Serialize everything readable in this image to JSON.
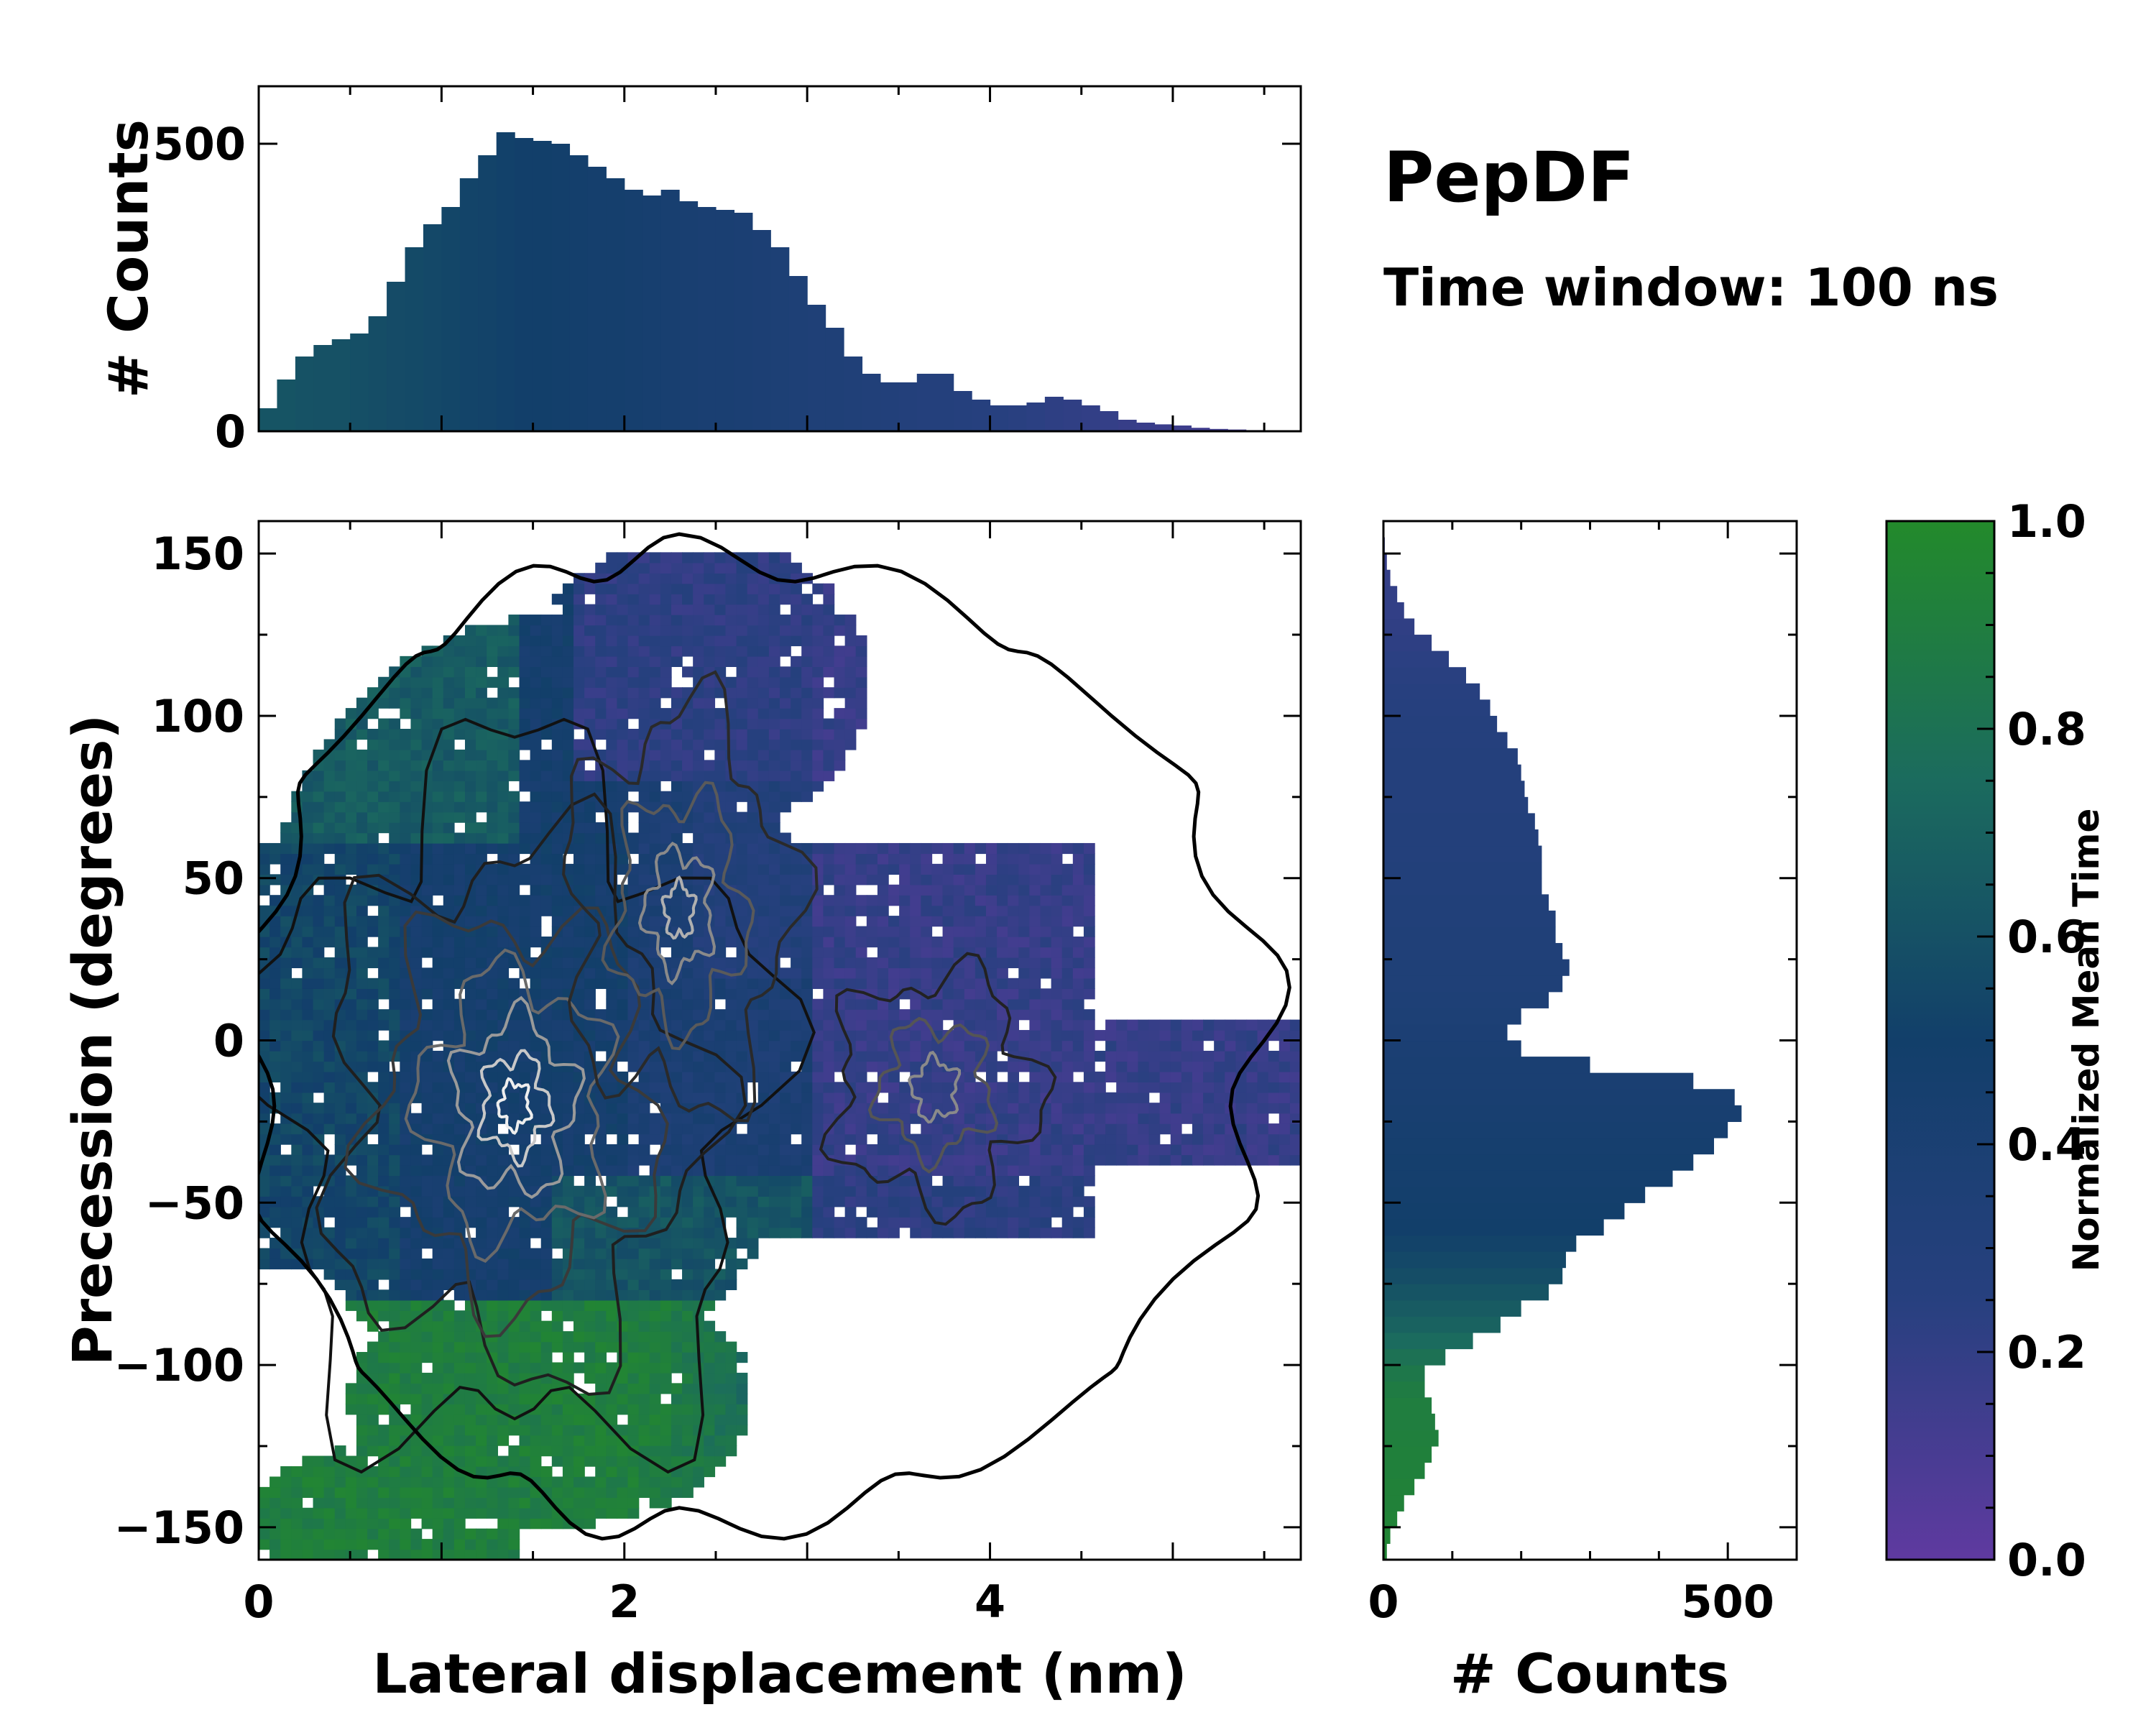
{
  "title": "PepDF",
  "subtitle": "Time window: 100 ns",
  "colors": {
    "green": "#238a2b",
    "teal": "#1b6b5e",
    "navy": "#123f6a",
    "blue": "#27407f",
    "purple": "#5f3aa0"
  },
  "chart_data": [
    {
      "type": "bar",
      "name": "top-histogram",
      "xlabel": "",
      "ylabel": "# Counts",
      "xlim": [
        0,
        5.7
      ],
      "ylim": [
        0,
        600
      ],
      "xticks": [],
      "yticks": [
        0,
        500
      ],
      "ytick_labels": [
        "0",
        "500"
      ],
      "bin_centers": [
        0.05,
        0.15,
        0.25,
        0.35,
        0.45,
        0.55,
        0.65,
        0.75,
        0.85,
        0.95,
        1.05,
        1.15,
        1.25,
        1.35,
        1.45,
        1.55,
        1.65,
        1.75,
        1.85,
        1.95,
        2.05,
        2.15,
        2.25,
        2.35,
        2.45,
        2.55,
        2.65,
        2.75,
        2.85,
        2.95,
        3.05,
        3.15,
        3.25,
        3.35,
        3.45,
        3.55,
        3.65,
        3.75,
        3.85,
        3.95,
        4.05,
        4.15,
        4.25,
        4.35,
        4.45,
        4.55,
        4.65,
        4.75,
        4.85,
        4.95,
        5.05,
        5.15,
        5.25,
        5.35,
        5.45,
        5.55,
        5.65
      ],
      "values": [
        40,
        90,
        130,
        150,
        160,
        170,
        200,
        260,
        320,
        360,
        390,
        440,
        480,
        520,
        510,
        505,
        500,
        480,
        460,
        440,
        420,
        410,
        420,
        400,
        390,
        385,
        380,
        350,
        320,
        270,
        220,
        180,
        130,
        100,
        85,
        85,
        100,
        100,
        70,
        55,
        45,
        45,
        50,
        60,
        55,
        45,
        35,
        20,
        15,
        12,
        10,
        6,
        4,
        3,
        2,
        1,
        1
      ],
      "color_by": "Normalized Mean Time",
      "mean_time": [
        0.62,
        0.62,
        0.61,
        0.6,
        0.6,
        0.59,
        0.58,
        0.57,
        0.56,
        0.55,
        0.54,
        0.53,
        0.52,
        0.51,
        0.5,
        0.5,
        0.49,
        0.48,
        0.47,
        0.46,
        0.45,
        0.44,
        0.43,
        0.42,
        0.41,
        0.4,
        0.39,
        0.38,
        0.37,
        0.36,
        0.35,
        0.34,
        0.33,
        0.32,
        0.31,
        0.3,
        0.29,
        0.28,
        0.27,
        0.26,
        0.25,
        0.24,
        0.23,
        0.22,
        0.21,
        0.2,
        0.19,
        0.18,
        0.17,
        0.16,
        0.15,
        0.14,
        0.13,
        0.12,
        0.11,
        0.1,
        0.1
      ]
    },
    {
      "type": "heatmap",
      "name": "main-2d-histogram",
      "xlabel": "Lateral displacement (nm)",
      "ylabel": "Precession (degrees)",
      "xlim": [
        0,
        5.7
      ],
      "ylim": [
        -160,
        160
      ],
      "xticks": [
        0,
        2,
        4
      ],
      "xtick_labels": [
        "0",
        "2",
        "4"
      ],
      "yticks": [
        150,
        100,
        50,
        0,
        -50,
        -100,
        -150
      ],
      "ytick_labels": [
        "150",
        "100",
        "50",
        "0",
        "−50",
        "−100",
        "−150"
      ],
      "color_by": "Normalized Mean Time",
      "overlay": "density contour lines (black to white with increasing counts)",
      "density_peaks": [
        {
          "x": 1.4,
          "y": -20,
          "counts": "high"
        },
        {
          "x": 2.3,
          "y": 40,
          "counts": "medium"
        },
        {
          "x": 3.7,
          "y": -15,
          "counts": "medium"
        }
      ],
      "mean_time_regions": [
        {
          "x_range": [
            0,
            2.5
          ],
          "y_range": [
            -160,
            -80
          ],
          "mean_time": 0.9
        },
        {
          "x_range": [
            0,
            1.5
          ],
          "y_range": [
            60,
            150
          ],
          "mean_time": 0.68
        },
        {
          "x_range": [
            0,
            2.5
          ],
          "y_range": [
            -70,
            70
          ],
          "mean_time": 0.45
        },
        {
          "x_range": [
            1.7,
            3.2
          ],
          "y_range": [
            -90,
            -30
          ],
          "mean_time": 0.6
        },
        {
          "x_range": [
            2.0,
            3.0
          ],
          "y_range": [
            80,
            150
          ],
          "mean_time": 0.22
        },
        {
          "x_range": [
            3.0,
            5.7
          ],
          "y_range": [
            -60,
            60
          ],
          "mean_time": 0.18
        }
      ]
    },
    {
      "type": "bar",
      "orientation": "horizontal",
      "name": "right-histogram",
      "xlabel": "# Counts",
      "ylabel": "",
      "xlim": [
        0,
        600
      ],
      "ylim": [
        -160,
        160
      ],
      "xticks": [
        0,
        500
      ],
      "xtick_labels": [
        "0",
        "500"
      ],
      "yticks": [],
      "bin_centers": [
        -157.5,
        -152.5,
        -147.5,
        -142.5,
        -137.5,
        -132.5,
        -127.5,
        -122.5,
        -117.5,
        -112.5,
        -107.5,
        -102.5,
        -97.5,
        -92.5,
        -87.5,
        -82.5,
        -77.5,
        -72.5,
        -67.5,
        -62.5,
        -57.5,
        -52.5,
        -47.5,
        -42.5,
        -37.5,
        -32.5,
        -27.5,
        -22.5,
        -17.5,
        -12.5,
        -7.5,
        -2.5,
        2.5,
        7.5,
        12.5,
        17.5,
        22.5,
        27.5,
        32.5,
        37.5,
        42.5,
        47.5,
        52.5,
        57.5,
        62.5,
        67.5,
        72.5,
        77.5,
        82.5,
        87.5,
        92.5,
        97.5,
        102.5,
        107.5,
        112.5,
        117.5,
        122.5,
        127.5,
        132.5,
        137.5,
        142.5,
        147.5,
        152.5,
        157.5
      ],
      "values": [
        5,
        10,
        20,
        30,
        45,
        60,
        70,
        80,
        75,
        70,
        60,
        60,
        90,
        130,
        170,
        200,
        240,
        260,
        265,
        280,
        320,
        350,
        380,
        420,
        450,
        480,
        500,
        520,
        510,
        450,
        300,
        200,
        180,
        200,
        240,
        260,
        270,
        260,
        250,
        250,
        240,
        230,
        230,
        230,
        225,
        220,
        210,
        205,
        200,
        195,
        180,
        165,
        155,
        140,
        120,
        95,
        70,
        45,
        30,
        20,
        10,
        5,
        2,
        1
      ],
      "color_by": "Normalized Mean Time",
      "mean_time": [
        0.95,
        0.95,
        0.94,
        0.93,
        0.93,
        0.92,
        0.92,
        0.91,
        0.9,
        0.9,
        0.88,
        0.85,
        0.8,
        0.75,
        0.7,
        0.66,
        0.62,
        0.58,
        0.55,
        0.52,
        0.5,
        0.49,
        0.48,
        0.47,
        0.46,
        0.45,
        0.44,
        0.43,
        0.42,
        0.41,
        0.4,
        0.39,
        0.38,
        0.37,
        0.36,
        0.35,
        0.34,
        0.33,
        0.33,
        0.32,
        0.32,
        0.31,
        0.31,
        0.3,
        0.3,
        0.3,
        0.29,
        0.29,
        0.28,
        0.28,
        0.27,
        0.27,
        0.26,
        0.25,
        0.24,
        0.23,
        0.22,
        0.21,
        0.2,
        0.2,
        0.19,
        0.18,
        0.18,
        0.17
      ]
    },
    {
      "type": "colorbar",
      "name": "colorbar",
      "label": "Normalized Mean Time",
      "range": [
        0.0,
        1.0
      ],
      "ticks": [
        0.0,
        0.2,
        0.4,
        0.6,
        0.8,
        1.0
      ],
      "tick_labels": [
        "0.0",
        "0.2",
        "0.4",
        "0.6",
        "0.8",
        "1.0"
      ],
      "colormap": [
        "#5f3aa0",
        "#27407f",
        "#123f6a",
        "#1b6b5e",
        "#238a2b"
      ]
    }
  ]
}
